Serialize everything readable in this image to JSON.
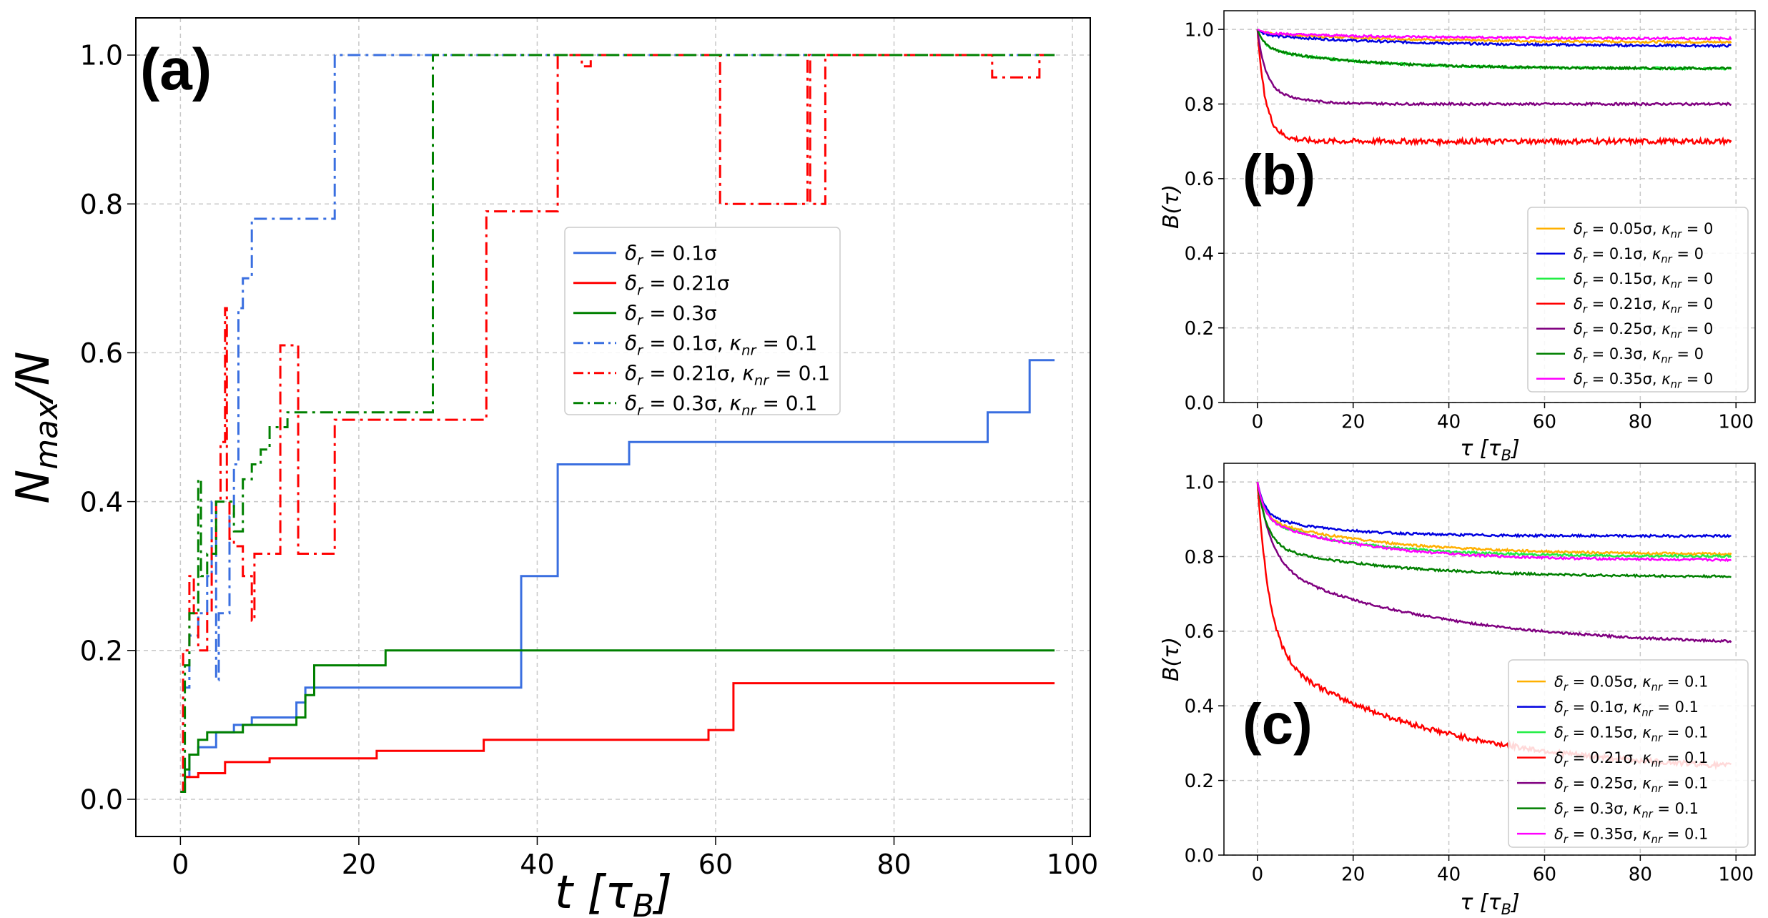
{
  "chart_data": [
    {
      "id": "a",
      "type": "line",
      "panel_label": "(a)",
      "xlabel": "t [τ_B]",
      "ylabel": "N_max/N",
      "xlim": [
        -5,
        102
      ],
      "ylim": [
        -0.05,
        1.05
      ],
      "xticks": [
        0,
        20,
        40,
        60,
        80,
        100
      ],
      "yticks": [
        0.0,
        0.2,
        0.4,
        0.6,
        0.8,
        1.0
      ],
      "xtick_labels": [
        "0",
        "20",
        "40",
        "60",
        "80",
        "100"
      ],
      "ytick_labels": [
        "0.0",
        "0.2",
        "0.4",
        "0.6",
        "0.8",
        "1.0"
      ],
      "grid": true,
      "legend_position": "center-right",
      "series": [
        {
          "name": "δr = 0.1σ",
          "color": "#3a6fe0",
          "style": "solid",
          "x": [
            0,
            0.5,
            1,
            2,
            4,
            6,
            7,
            8,
            10,
            13,
            14,
            20,
            30,
            38,
            38.2,
            42,
            42.3,
            50,
            50.3,
            90,
            90.5,
            95,
            95.2,
            98
          ],
          "y": [
            0.01,
            0.03,
            0.06,
            0.07,
            0.09,
            0.1,
            0.1,
            0.11,
            0.11,
            0.13,
            0.15,
            0.15,
            0.15,
            0.15,
            0.3,
            0.3,
            0.45,
            0.45,
            0.48,
            0.48,
            0.52,
            0.52,
            0.59,
            0.59
          ]
        },
        {
          "name": "δr = 0.21σ",
          "color": "#ff0000",
          "style": "solid",
          "x": [
            0,
            0.5,
            1,
            2,
            4,
            5,
            8,
            10,
            15,
            21,
            22,
            30,
            33,
            34,
            45,
            55,
            59,
            59.2,
            61.5,
            62,
            98
          ],
          "y": [
            0.01,
            0.03,
            0.03,
            0.035,
            0.035,
            0.05,
            0.05,
            0.055,
            0.055,
            0.055,
            0.065,
            0.065,
            0.065,
            0.08,
            0.08,
            0.08,
            0.08,
            0.093,
            0.093,
            0.156,
            0.156
          ]
        },
        {
          "name": "δr = 0.3σ",
          "color": "#008000",
          "style": "solid",
          "x": [
            0,
            0.5,
            1,
            2,
            3,
            5,
            7,
            10,
            13,
            14,
            15,
            20,
            23,
            30,
            44,
            50,
            60,
            98
          ],
          "y": [
            0.01,
            0.04,
            0.06,
            0.08,
            0.09,
            0.09,
            0.1,
            0.1,
            0.11,
            0.14,
            0.18,
            0.18,
            0.2,
            0.2,
            0.2,
            0.2,
            0.2,
            0.2
          ]
        },
        {
          "name": "δr = 0.1σ, κnr = 0.1",
          "color": "#3a6fe0",
          "style": "dashdot",
          "x": [
            0,
            0.3,
            1,
            2,
            3,
            3.5,
            4,
            4.3,
            5,
            5.5,
            6,
            6.5,
            7,
            7.5,
            8,
            12,
            17,
            17.3,
            28,
            40,
            98
          ],
          "y": [
            0.01,
            0.15,
            0.22,
            0.25,
            0.3,
            0.4,
            0.16,
            0.25,
            0.25,
            0.38,
            0.45,
            0.66,
            0.7,
            0.7,
            0.78,
            0.78,
            0.78,
            1.0,
            1.0,
            1.0,
            1.0
          ]
        },
        {
          "name": "δr = 0.21σ, κnr = 0.1",
          "color": "#ff0000",
          "style": "dashdot",
          "x": [
            0,
            0.3,
            1,
            1.5,
            2,
            3,
            3.5,
            4,
            4.5,
            5,
            5.2,
            5.5,
            6,
            7,
            8,
            8.3,
            9,
            11,
            11.2,
            13,
            13.2,
            17,
            17.3,
            30,
            34,
            34.3,
            40,
            42,
            42.3,
            44,
            45,
            46,
            60,
            60.5,
            70,
            70.3,
            70.6,
            72,
            72.3,
            90,
            91,
            96,
            96.3,
            98
          ],
          "y": [
            0.01,
            0.2,
            0.3,
            0.25,
            0.2,
            0.25,
            0.35,
            0.4,
            0.48,
            0.66,
            0.4,
            0.35,
            0.34,
            0.3,
            0.24,
            0.33,
            0.33,
            0.33,
            0.61,
            0.61,
            0.33,
            0.33,
            0.51,
            0.51,
            0.51,
            0.79,
            0.79,
            0.79,
            1.0,
            1.0,
            0.985,
            1.0,
            1.0,
            0.8,
            0.8,
            1.0,
            0.8,
            0.8,
            1.0,
            1.0,
            0.97,
            0.97,
            1.0,
            1.0
          ]
        },
        {
          "name": "δr = 0.3σ, κnr = 0.1",
          "color": "#008000",
          "style": "dashdot",
          "x": [
            0,
            0.5,
            1,
            2,
            2.3,
            3,
            4,
            5,
            6,
            7,
            8,
            9,
            10,
            12,
            13,
            14,
            15,
            16,
            28,
            28.3,
            40,
            60,
            98
          ],
          "y": [
            0.01,
            0.18,
            0.25,
            0.43,
            0.3,
            0.33,
            0.4,
            0.4,
            0.36,
            0.43,
            0.45,
            0.47,
            0.5,
            0.52,
            0.52,
            0.52,
            0.52,
            0.52,
            0.52,
            1.0,
            1.0,
            1.0,
            1.0
          ]
        }
      ]
    },
    {
      "id": "b",
      "type": "line",
      "panel_label": "(b)",
      "xlabel": "τ [τ_B]",
      "ylabel": "B(τ)",
      "xlim": [
        -7,
        104
      ],
      "ylim": [
        0.0,
        1.05
      ],
      "xticks": [
        0,
        20,
        40,
        60,
        80,
        100
      ],
      "yticks": [
        0.0,
        0.2,
        0.4,
        0.6,
        0.8,
        1.0
      ],
      "xtick_labels": [
        "0",
        "20",
        "40",
        "60",
        "80",
        "100"
      ],
      "ytick_labels": [
        "0.0",
        "0.2",
        "0.4",
        "0.6",
        "0.8",
        "1.0"
      ],
      "grid": true,
      "legend_position": "lower-right",
      "series": [
        {
          "name": "δr = 0.05σ, κnr = 0",
          "color": "#ffb000",
          "final": 0.965,
          "early": 0.99,
          "tau": 30
        },
        {
          "name": "δr = 0.1σ, κnr = 0",
          "color": "#0000e0",
          "final": 0.955,
          "early": 0.985,
          "tau": 30
        },
        {
          "name": "δr = 0.15σ, κnr = 0",
          "color": "#22ee44",
          "final": 0.895,
          "early": 0.95,
          "tau": 20
        },
        {
          "name": "δr = 0.21σ, κnr = 0",
          "color": "#ff0000",
          "final": 0.7,
          "early": 0.77,
          "tau": 3
        },
        {
          "name": "δr = 0.25σ, κnr = 0",
          "color": "#800080",
          "final": 0.8,
          "early": 0.86,
          "tau": 6
        },
        {
          "name": "δr = 0.3σ, κnr = 0",
          "color": "#008000",
          "final": 0.895,
          "early": 0.95,
          "tau": 20
        },
        {
          "name": "δr = 0.35σ, κnr = 0",
          "color": "#ff00ff",
          "final": 0.975,
          "early": 0.99,
          "tau": 30
        }
      ]
    },
    {
      "id": "c",
      "type": "line",
      "panel_label": "(c)",
      "xlabel": "τ [τ_B]",
      "ylabel": "B(τ)",
      "xlim": [
        -7,
        104
      ],
      "ylim": [
        0.0,
        1.05
      ],
      "xticks": [
        0,
        20,
        40,
        60,
        80,
        100
      ],
      "yticks": [
        0.0,
        0.2,
        0.4,
        0.6,
        0.8,
        1.0
      ],
      "xtick_labels": [
        "0",
        "20",
        "40",
        "60",
        "80",
        "100"
      ],
      "ytick_labels": [
        "0.0",
        "0.2",
        "0.4",
        "0.6",
        "0.8",
        "1.0"
      ],
      "grid": true,
      "legend_position": "lower-right",
      "series": [
        {
          "name": "δr = 0.05σ, κnr = 0.1",
          "color": "#ffb000",
          "final": 0.805,
          "early": 0.9,
          "tau": 25
        },
        {
          "name": "δr = 0.1σ, κnr = 0.1",
          "color": "#0000e0",
          "final": 0.855,
          "early": 0.91,
          "tau": 15
        },
        {
          "name": "δr = 0.15σ, κnr = 0.1",
          "color": "#22ee44",
          "final": 0.8,
          "early": 0.9,
          "tau": 20
        },
        {
          "name": "δr = 0.21σ, κnr = 0.1",
          "color": "#ff0000",
          "final": 0.22,
          "early": 0.55,
          "tau": 35,
          "fast": 2.5
        },
        {
          "name": "δr = 0.25σ, κnr = 0.1",
          "color": "#800080",
          "final": 0.56,
          "early": 0.78,
          "tau": 35,
          "fast": 3
        },
        {
          "name": "δr = 0.3σ, κnr = 0.1",
          "color": "#008000",
          "final": 0.745,
          "early": 0.83,
          "tau": 25,
          "fast": 2
        },
        {
          "name": "δr = 0.35σ, κnr = 0.1",
          "color": "#ff00ff",
          "final": 0.79,
          "early": 0.9,
          "tau": 22
        }
      ]
    }
  ]
}
